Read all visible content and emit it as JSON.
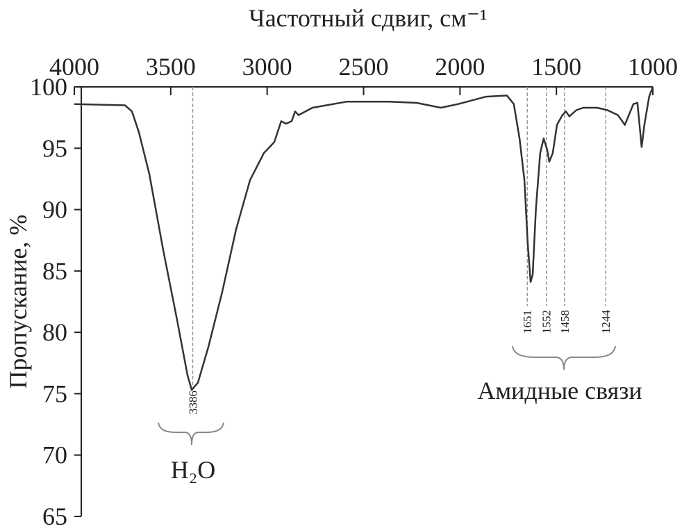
{
  "chart_data": {
    "type": "line",
    "title": "Частотный сдвиг, см⁻¹",
    "y_label": "Пропускание, %",
    "series": [
      {
        "color": "#333333",
        "x": [
          4000,
          3737,
          3701,
          3665,
          3611,
          3539,
          3467,
          3413,
          3391,
          3359,
          3305,
          3233,
          3161,
          3089,
          3017,
          2963,
          2927,
          2902,
          2873,
          2855,
          2837,
          2765,
          2585,
          2369,
          2225,
          2099,
          2009,
          1865,
          1757,
          1721,
          1691,
          1666,
          1649,
          1634,
          1623,
          1606,
          1584,
          1566,
          1548,
          1537,
          1519,
          1497,
          1469,
          1451,
          1433,
          1397,
          1361,
          1289,
          1235,
          1181,
          1145,
          1101,
          1080,
          1058,
          1044,
          1019,
          1000
        ],
        "values": [
          98.6,
          98.5,
          98.0,
          96.3,
          92.9,
          86.7,
          81.0,
          76.5,
          75.3,
          75.9,
          78.8,
          83.3,
          88.4,
          92.4,
          94.6,
          95.5,
          97.2,
          97.0,
          97.2,
          98.0,
          97.7,
          98.3,
          98.8,
          98.8,
          98.7,
          98.3,
          98.6,
          99.2,
          99.3,
          98.6,
          95.8,
          92.4,
          87.3,
          84.1,
          84.7,
          90.1,
          94.6,
          95.8,
          94.9,
          93.9,
          94.6,
          96.9,
          97.7,
          98.0,
          97.6,
          98.1,
          98.3,
          98.3,
          98.1,
          97.7,
          96.9,
          98.6,
          98.7,
          95.1,
          96.9,
          99.2,
          100
        ]
      }
    ],
    "xlim": [
      4000,
      1000
    ],
    "xticks": [
      4000,
      3500,
      3000,
      2500,
      2000,
      1500,
      1000
    ],
    "ylim": [
      65,
      100
    ],
    "yticks": [
      65,
      70,
      75,
      80,
      85,
      90,
      95,
      100
    ],
    "annotations": [
      {
        "text": "H₂O",
        "peaks": [
          3386
        ]
      },
      {
        "text": "Амидные связи",
        "peaks": [
          1651,
          1552,
          1458,
          1244
        ]
      }
    ]
  }
}
